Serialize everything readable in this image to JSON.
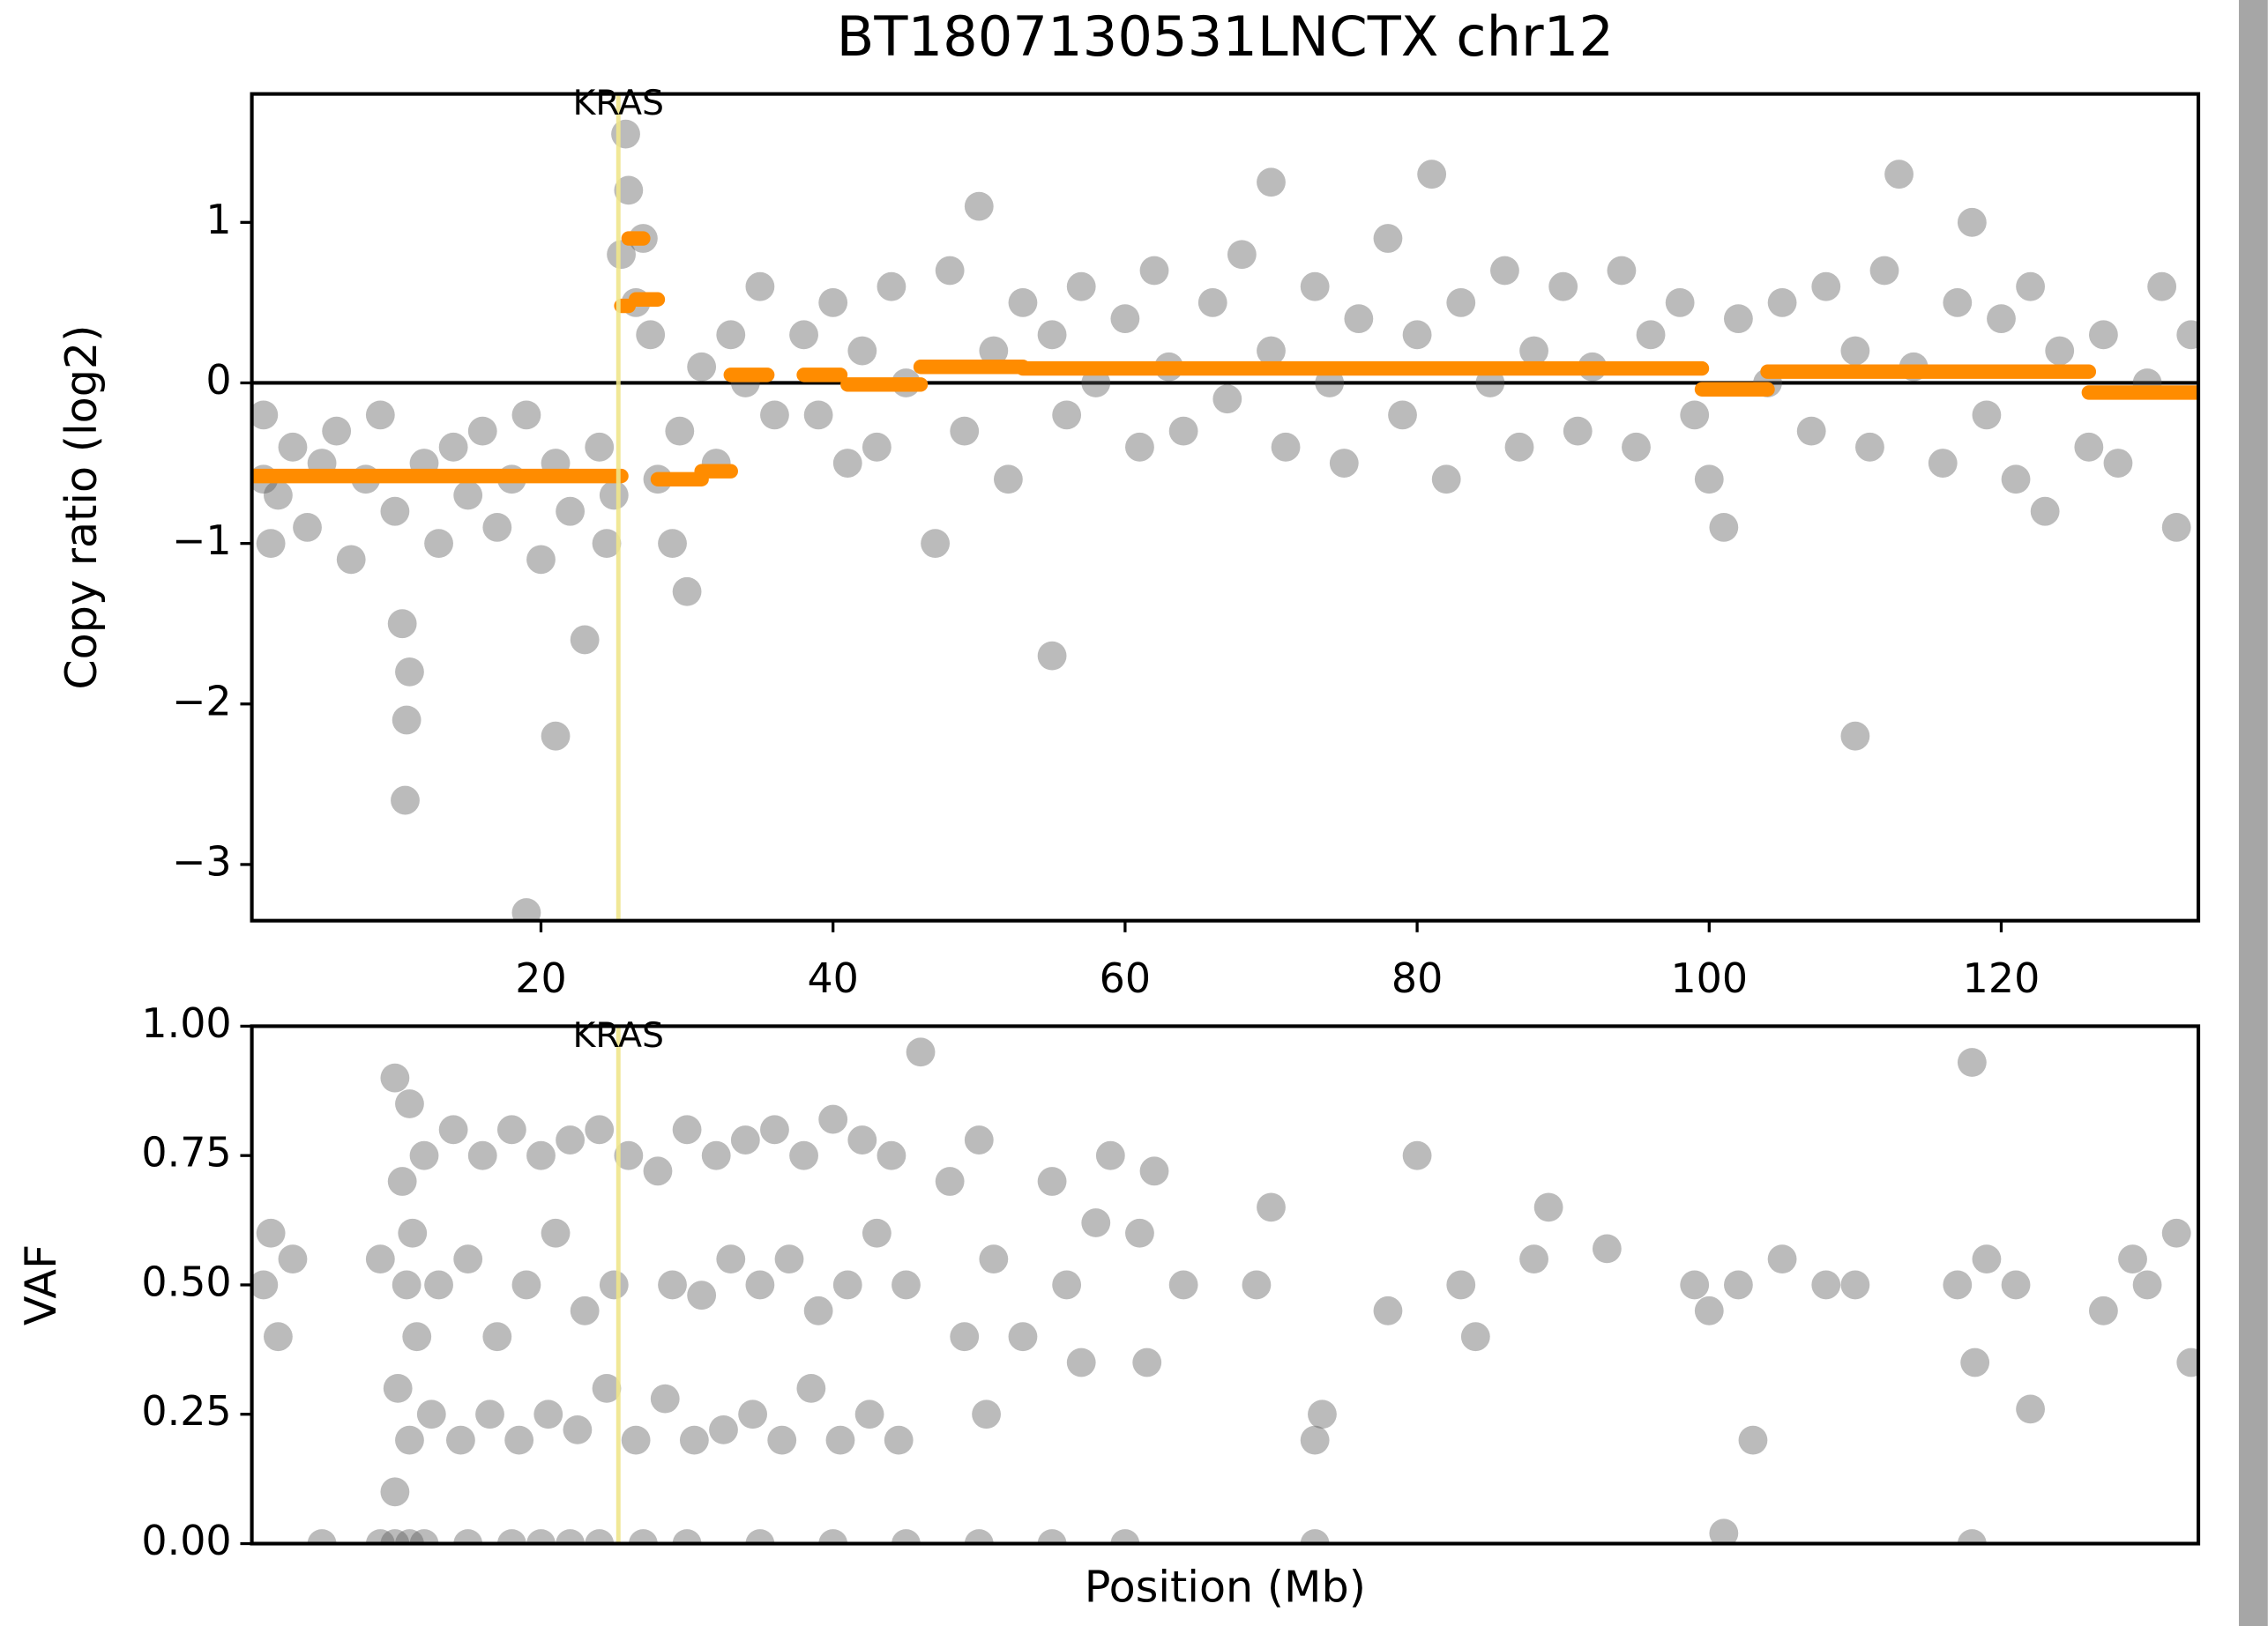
{
  "chart_data": [
    {
      "type": "scatter",
      "title": "BT1807130531LNCTX chr12",
      "y_label": "Copy ratio (log2)",
      "xlim": [
        0.2,
        133.5
      ],
      "xticks": [
        20,
        40,
        60,
        80,
        100,
        120
      ],
      "ylim": [
        -3.35,
        1.8
      ],
      "yticks": [
        {
          "value": -3,
          "label": "−3"
        },
        {
          "value": -2,
          "label": "−2"
        },
        {
          "value": -1,
          "label": "−1"
        },
        0,
        1
      ],
      "zero_line": true,
      "highlight": {
        "label": "KRAS",
        "x": 25.3,
        "color": "#f0e68c"
      },
      "series": [
        {
          "color": "#555555",
          "x": [
            1,
            1,
            1.5,
            2,
            3,
            4,
            5,
            6,
            7,
            8,
            9,
            10,
            10.5,
            11,
            10.8,
            10.7,
            12,
            13,
            14,
            15,
            16,
            17,
            18,
            19,
            19,
            20,
            21,
            21,
            22,
            23,
            24,
            24.5,
            25,
            25.5,
            26,
            26.5,
            25.8,
            27,
            27.5,
            28,
            29,
            29.5,
            30,
            31,
            32,
            33,
            34,
            35,
            36,
            38,
            39,
            40,
            41,
            42,
            43,
            44,
            45,
            47,
            48,
            49,
            50,
            51,
            52,
            53,
            55,
            55,
            56,
            57,
            58,
            60,
            61,
            62,
            63,
            64,
            66,
            67,
            68,
            70,
            70,
            71,
            73,
            74,
            75,
            76,
            78,
            79,
            80,
            81,
            82,
            83,
            85,
            86,
            87,
            88,
            90,
            91,
            92,
            94,
            95,
            96,
            98,
            99,
            100,
            101,
            102,
            104,
            105,
            107,
            108,
            110,
            110,
            111,
            112,
            113,
            114,
            116,
            117,
            118,
            119,
            120,
            121,
            122,
            123,
            124,
            126,
            127,
            128,
            130,
            131,
            132,
            133
          ],
          "values": [
            -0.6,
            -0.2,
            -1.0,
            -0.7,
            -0.4,
            -0.9,
            -0.5,
            -0.3,
            -1.1,
            -0.6,
            -0.2,
            -0.8,
            -1.5,
            -1.8,
            -2.1,
            -2.6,
            -0.5,
            -1.0,
            -0.4,
            -0.7,
            -0.3,
            -0.9,
            -0.6,
            -3.3,
            -0.2,
            -1.1,
            -2.2,
            -0.5,
            -0.8,
            -1.6,
            -0.4,
            -1.0,
            -0.7,
            0.8,
            1.2,
            0.5,
            1.55,
            0.9,
            0.3,
            -0.6,
            -1.0,
            -0.3,
            -1.3,
            0.1,
            -0.5,
            0.3,
            0,
            0.6,
            -0.2,
            0.3,
            -0.2,
            0.5,
            -0.5,
            0.2,
            -0.4,
            0.6,
            0,
            -1.0,
            0.7,
            -0.3,
            1.1,
            0.2,
            -0.6,
            0.5,
            -1.7,
            0.3,
            -0.2,
            0.6,
            0,
            0.4,
            -0.4,
            0.7,
            0.1,
            -0.3,
            0.5,
            -0.1,
            0.8,
            1.25,
            0.2,
            -0.4,
            0.6,
            0,
            -0.5,
            0.4,
            0.9,
            -0.2,
            0.3,
            1.3,
            -0.6,
            0.5,
            0,
            0.7,
            -0.4,
            0.2,
            0.6,
            -0.3,
            0.1,
            0.7,
            -0.4,
            0.3,
            0.5,
            -0.2,
            -0.6,
            -0.9,
            0.4,
            0,
            0.5,
            -0.3,
            0.6,
            -2.2,
            0.2,
            -0.4,
            0.7,
            1.3,
            0.1,
            -0.5,
            0.5,
            1.0,
            -0.2,
            0.4,
            -0.6,
            0.6,
            -0.8,
            0.2,
            -0.4,
            0.3,
            -0.5,
            0,
            0.6,
            -0.9,
            0.3
          ]
        }
      ],
      "segments": {
        "color": "#ff8c00",
        "start": [
          0.2,
          25.5,
          26,
          26.5,
          28,
          31,
          33,
          38,
          41,
          46,
          53,
          99.5,
          104,
          126
        ],
        "end": [
          25.5,
          26,
          27,
          28,
          31,
          33,
          35.5,
          40.5,
          46,
          53,
          99.5,
          104,
          126,
          133.5
        ],
        "values": [
          -0.58,
          0.48,
          0.9,
          0.52,
          -0.6,
          -0.55,
          0.05,
          0.05,
          -0.01,
          0.1,
          0.09,
          -0.04,
          0.07,
          -0.06
        ]
      }
    },
    {
      "type": "scatter",
      "x_label": "Position (Mb)",
      "y_label": "VAF",
      "xlim": [
        0.2,
        133.5
      ],
      "ylim": [
        0,
        1
      ],
      "yticks": [
        {
          "value": 0,
          "label": "0.00"
        },
        {
          "value": 0.25,
          "label": "0.25"
        },
        {
          "value": 0.5,
          "label": "0.50"
        },
        {
          "value": 0.75,
          "label": "0.75"
        },
        {
          "value": 1,
          "label": "1.00"
        }
      ],
      "highlight": {
        "label": "KRAS",
        "x": 25.3,
        "color": "#f0e68c"
      },
      "series": [
        {
          "color": "#555555",
          "x": [
            1,
            1.5,
            2,
            3,
            9,
            10,
            10,
            10.2,
            10.5,
            10.8,
            11,
            11,
            11.2,
            11.5,
            12,
            12.5,
            13,
            14,
            14.5,
            15,
            16,
            16.5,
            17,
            18,
            18.5,
            19,
            20,
            20.5,
            21,
            22,
            22.5,
            23,
            24,
            24.5,
            25,
            26,
            26.5,
            28,
            28.5,
            29,
            30,
            30.5,
            31,
            32,
            32.5,
            33,
            34,
            34.5,
            35,
            36,
            36.5,
            37,
            38,
            38.5,
            39,
            40,
            40.5,
            41,
            42,
            42.5,
            43,
            44,
            44.5,
            45,
            46,
            48,
            49,
            50,
            50.5,
            51,
            53,
            55,
            56,
            57,
            58,
            59,
            61,
            61.5,
            62,
            64,
            69,
            70,
            73,
            73.5,
            78,
            80,
            83,
            84,
            88,
            89,
            93,
            99,
            100,
            101,
            102,
            103,
            105,
            108,
            110,
            117,
            118,
            118.2,
            119,
            121,
            122,
            127,
            129,
            130,
            132,
            133,
            5,
            9,
            10,
            11,
            12,
            15,
            18,
            20,
            22,
            24,
            27,
            30,
            35,
            40,
            45,
            50,
            55,
            60,
            73,
            118
          ],
          "values": [
            0.5,
            0.6,
            0.4,
            0.55,
            0.55,
            0.1,
            0.9,
            0.3,
            0.7,
            0.5,
            0.2,
            0.85,
            0.6,
            0.4,
            0.75,
            0.25,
            0.5,
            0.8,
            0.2,
            0.55,
            0.75,
            0.25,
            0.4,
            0.8,
            0.2,
            0.5,
            0.75,
            0.25,
            0.6,
            0.78,
            0.22,
            0.45,
            0.8,
            0.3,
            0.5,
            0.75,
            0.2,
            0.72,
            0.28,
            0.5,
            0.8,
            0.2,
            0.48,
            0.75,
            0.22,
            0.55,
            0.78,
            0.25,
            0.5,
            0.8,
            0.2,
            0.55,
            0.75,
            0.3,
            0.45,
            0.82,
            0.2,
            0.5,
            0.78,
            0.25,
            0.6,
            0.75,
            0.2,
            0.5,
            0.95,
            0.7,
            0.4,
            0.78,
            0.25,
            0.55,
            0.4,
            0.7,
            0.5,
            0.35,
            0.62,
            0.75,
            0.6,
            0.35,
            0.72,
            0.5,
            0.5,
            0.65,
            0.2,
            0.25,
            0.45,
            0.75,
            0.5,
            0.4,
            0.55,
            0.65,
            0.57,
            0.5,
            0.45,
            0.02,
            0.5,
            0.2,
            0.55,
            0.5,
            0.5,
            0.5,
            0.93,
            0.35,
            0.55,
            0.5,
            0.26,
            0.45,
            0.55,
            0.5,
            0.6,
            0.35,
            0,
            0,
            0,
            0,
            0,
            0,
            0,
            0,
            0,
            0,
            0,
            0,
            0,
            0,
            0,
            0,
            0,
            0,
            0,
            0
          ]
        }
      ]
    }
  ]
}
